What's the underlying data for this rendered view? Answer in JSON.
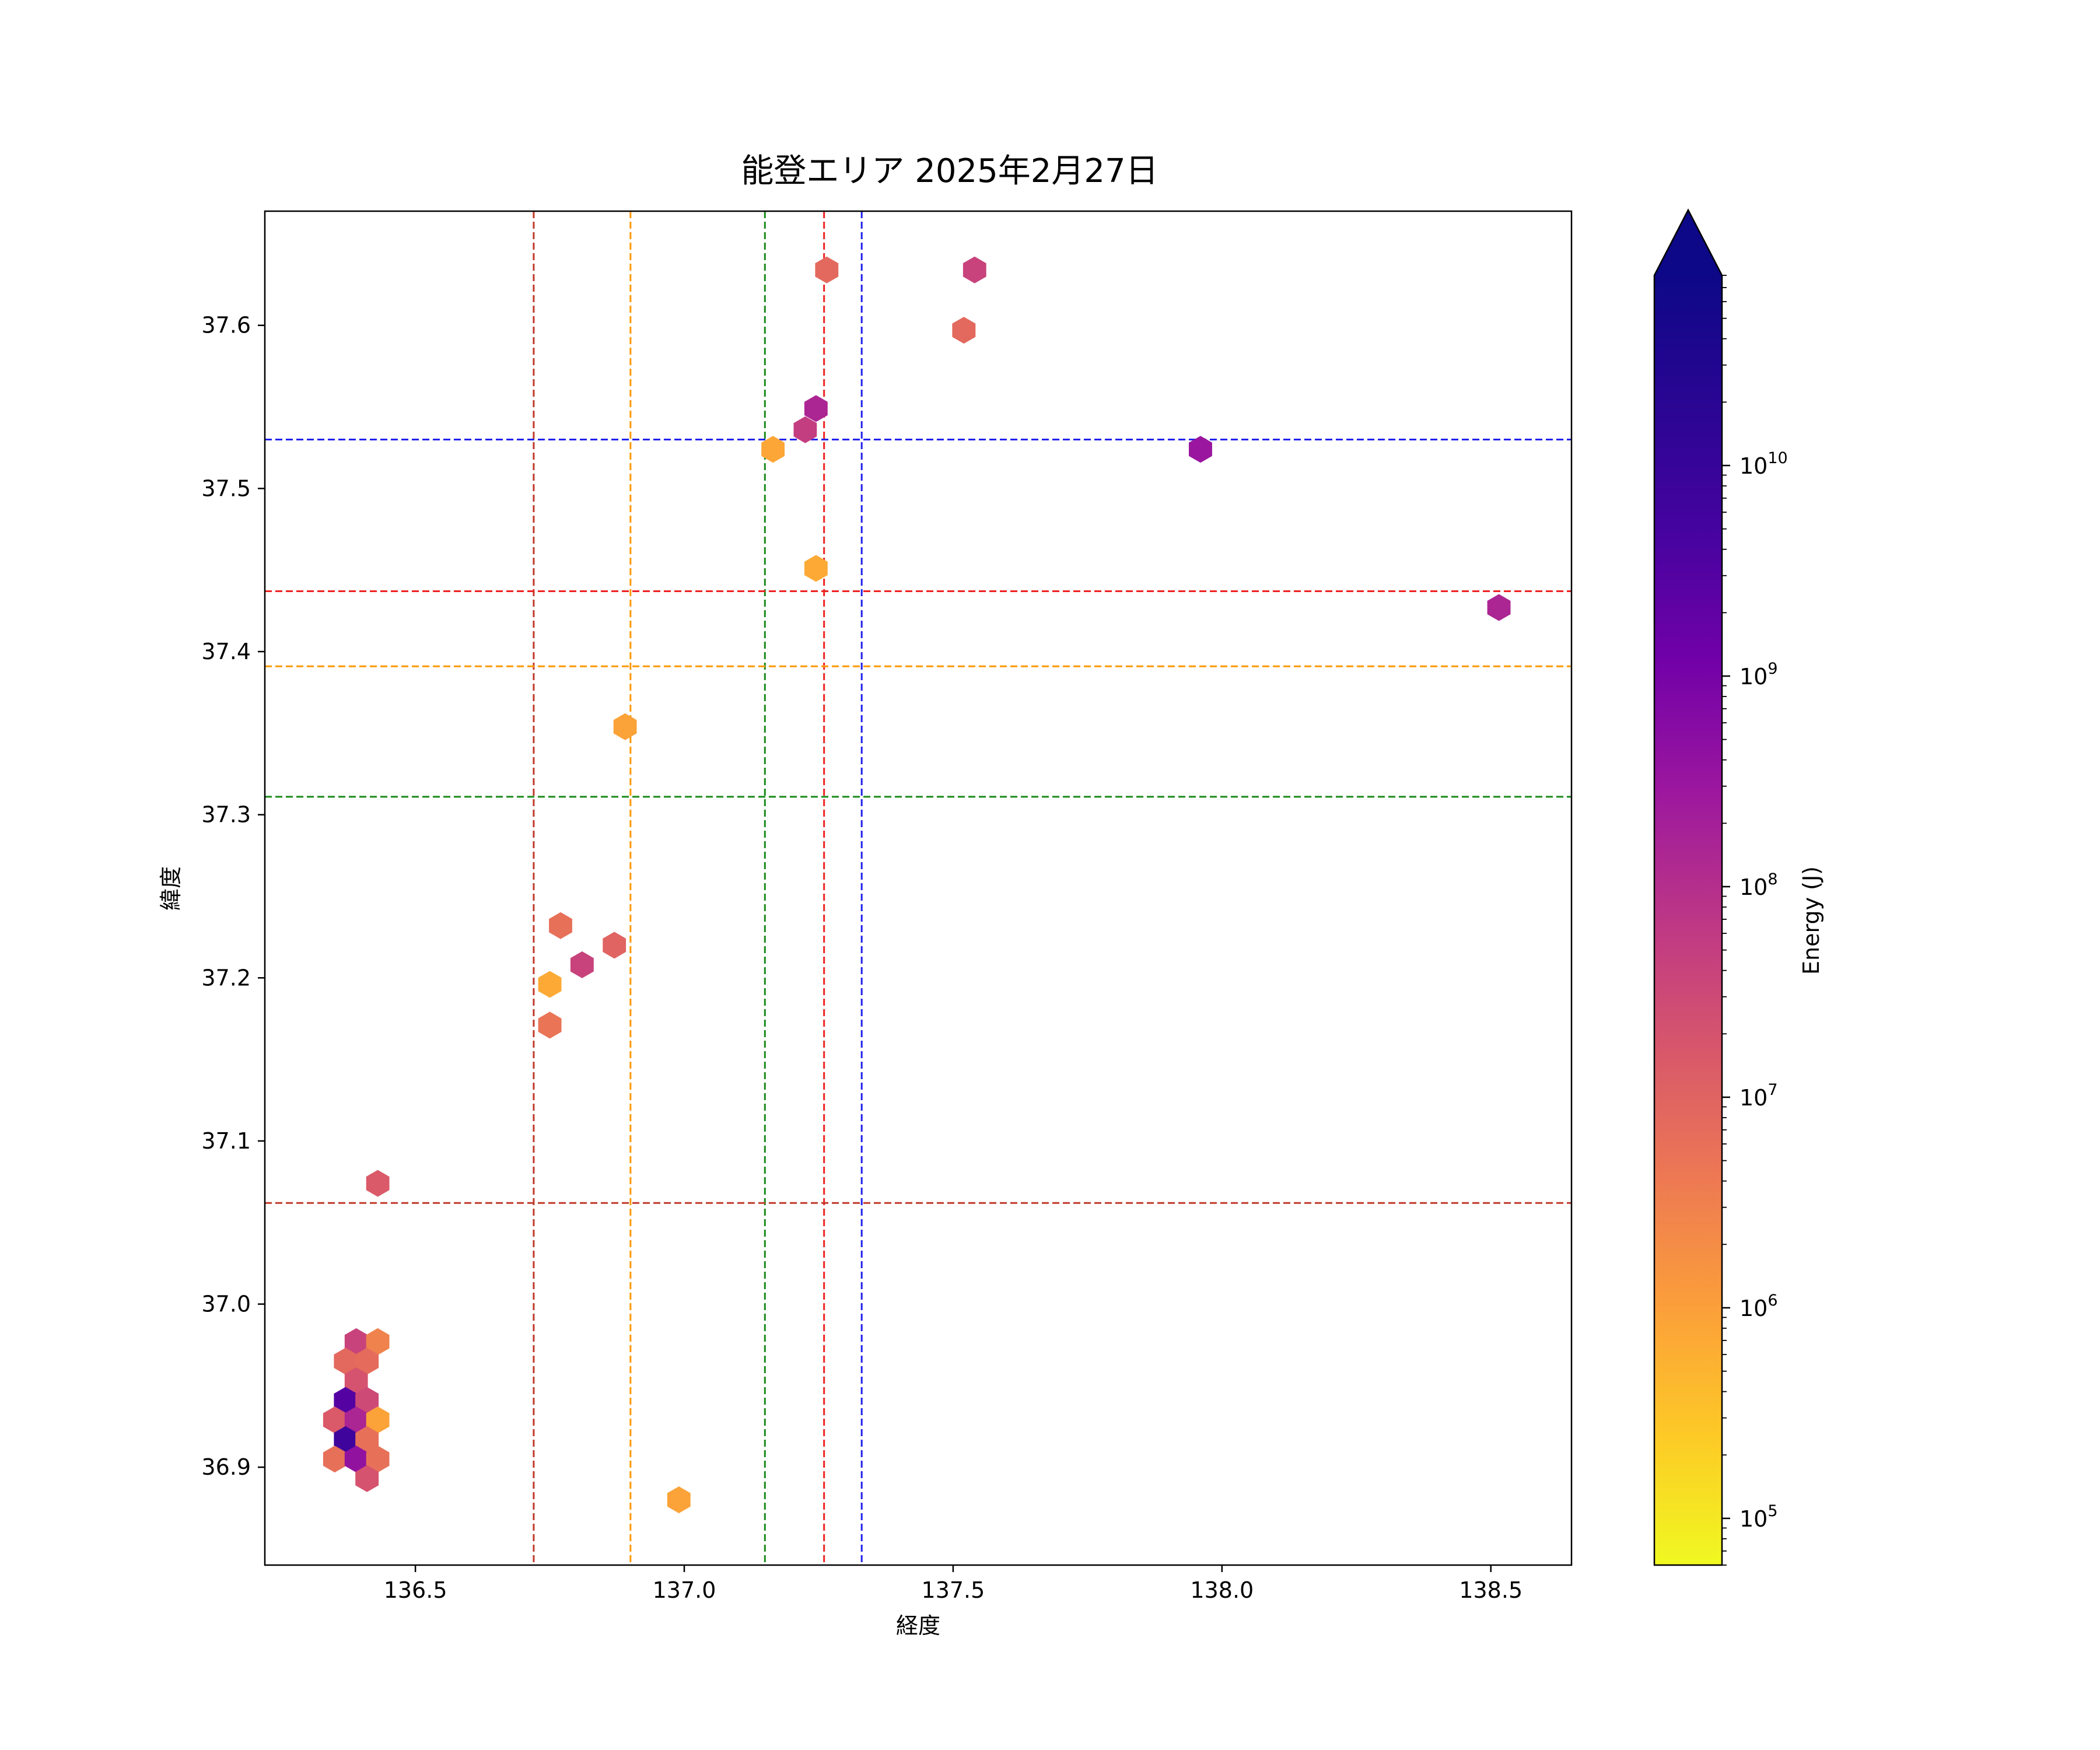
{
  "chart_data": {
    "type": "hexbin",
    "title": "能登エリア 2025年2月27日",
    "xlabel": "経度",
    "ylabel": "緯度",
    "xlim": [
      136.22,
      138.65
    ],
    "ylim": [
      36.84,
      37.67
    ],
    "x_ticks": [
      136.5,
      137.0,
      137.5,
      138.0,
      138.5
    ],
    "x_tick_labels": [
      "136.5",
      "137.0",
      "137.5",
      "138.0",
      "138.5"
    ],
    "y_ticks": [
      36.9,
      37.0,
      37.1,
      37.2,
      37.3,
      37.4,
      37.5,
      37.6
    ],
    "y_tick_labels": [
      "36.9",
      "37.0",
      "37.1",
      "37.2",
      "37.3",
      "37.4",
      "37.5",
      "37.6"
    ],
    "colorbar": {
      "label": "Energy (J)",
      "scale": "log",
      "colormap": "plasma_r",
      "vmin": 60000,
      "vmax": 80000000000,
      "extend": "max",
      "ticks": [
        5,
        6,
        7,
        8,
        9,
        10
      ],
      "tick_labels": [
        "10",
        "10",
        "10",
        "10",
        "10",
        "10"
      ],
      "tick_exponents": [
        "5",
        "6",
        "7",
        "8",
        "9",
        "10"
      ]
    },
    "vertical_lines": [
      {
        "x": 136.72,
        "color": "#c0392b"
      },
      {
        "x": 136.9,
        "color": "#ff9900"
      },
      {
        "x": 137.15,
        "color": "#1a8a1a"
      },
      {
        "x": 137.26,
        "color": "#ee2222"
      },
      {
        "x": 137.33,
        "color": "#2222ee"
      }
    ],
    "horizontal_lines": [
      {
        "y": 37.53,
        "color": "#2222ee"
      },
      {
        "y": 37.437,
        "color": "#ee2222"
      },
      {
        "y": 37.391,
        "color": "#ff9900"
      },
      {
        "y": 37.311,
        "color": "#1a8a1a"
      },
      {
        "y": 37.062,
        "color": "#c0392b"
      }
    ],
    "points": [
      {
        "x": 137.265,
        "y": 37.634,
        "energy": 8000000
      },
      {
        "x": 137.54,
        "y": 37.634,
        "energy": 40000000
      },
      {
        "x": 137.52,
        "y": 37.597,
        "energy": 8000000
      },
      {
        "x": 137.245,
        "y": 37.549,
        "energy": 150000000
      },
      {
        "x": 137.225,
        "y": 37.536,
        "energy": 50000000
      },
      {
        "x": 137.165,
        "y": 37.524,
        "energy": 800000
      },
      {
        "x": 137.96,
        "y": 37.524,
        "energy": 300000000
      },
      {
        "x": 137.245,
        "y": 37.451,
        "energy": 700000
      },
      {
        "x": 138.515,
        "y": 37.427,
        "energy": 150000000
      },
      {
        "x": 136.89,
        "y": 37.354,
        "energy": 900000
      },
      {
        "x": 136.77,
        "y": 37.232,
        "energy": 6000000
      },
      {
        "x": 136.87,
        "y": 37.22,
        "energy": 10000000
      },
      {
        "x": 136.81,
        "y": 37.208,
        "energy": 40000000
      },
      {
        "x": 136.75,
        "y": 37.196,
        "energy": 700000
      },
      {
        "x": 136.75,
        "y": 37.171,
        "energy": 5000000
      },
      {
        "x": 136.43,
        "y": 37.074,
        "energy": 15000000
      },
      {
        "x": 136.39,
        "y": 36.977,
        "energy": 40000000
      },
      {
        "x": 136.43,
        "y": 36.977,
        "energy": 3000000
      },
      {
        "x": 136.37,
        "y": 36.965,
        "energy": 8000000
      },
      {
        "x": 136.41,
        "y": 36.965,
        "energy": 7000000
      },
      {
        "x": 136.39,
        "y": 36.953,
        "energy": 20000000
      },
      {
        "x": 136.37,
        "y": 36.941,
        "energy": 3000000000
      },
      {
        "x": 136.41,
        "y": 36.941,
        "energy": 30000000
      },
      {
        "x": 136.35,
        "y": 36.929,
        "energy": 15000000
      },
      {
        "x": 136.39,
        "y": 36.929,
        "energy": 150000000
      },
      {
        "x": 136.43,
        "y": 36.929,
        "energy": 900000
      },
      {
        "x": 136.37,
        "y": 36.917,
        "energy": 7000000000
      },
      {
        "x": 136.41,
        "y": 36.917,
        "energy": 6000000
      },
      {
        "x": 136.35,
        "y": 36.905,
        "energy": 6000000
      },
      {
        "x": 136.39,
        "y": 36.905,
        "energy": 400000000
      },
      {
        "x": 136.43,
        "y": 36.905,
        "energy": 6000000
      },
      {
        "x": 136.41,
        "y": 36.893,
        "energy": 20000000
      },
      {
        "x": 136.99,
        "y": 36.88,
        "energy": 900000
      }
    ]
  }
}
